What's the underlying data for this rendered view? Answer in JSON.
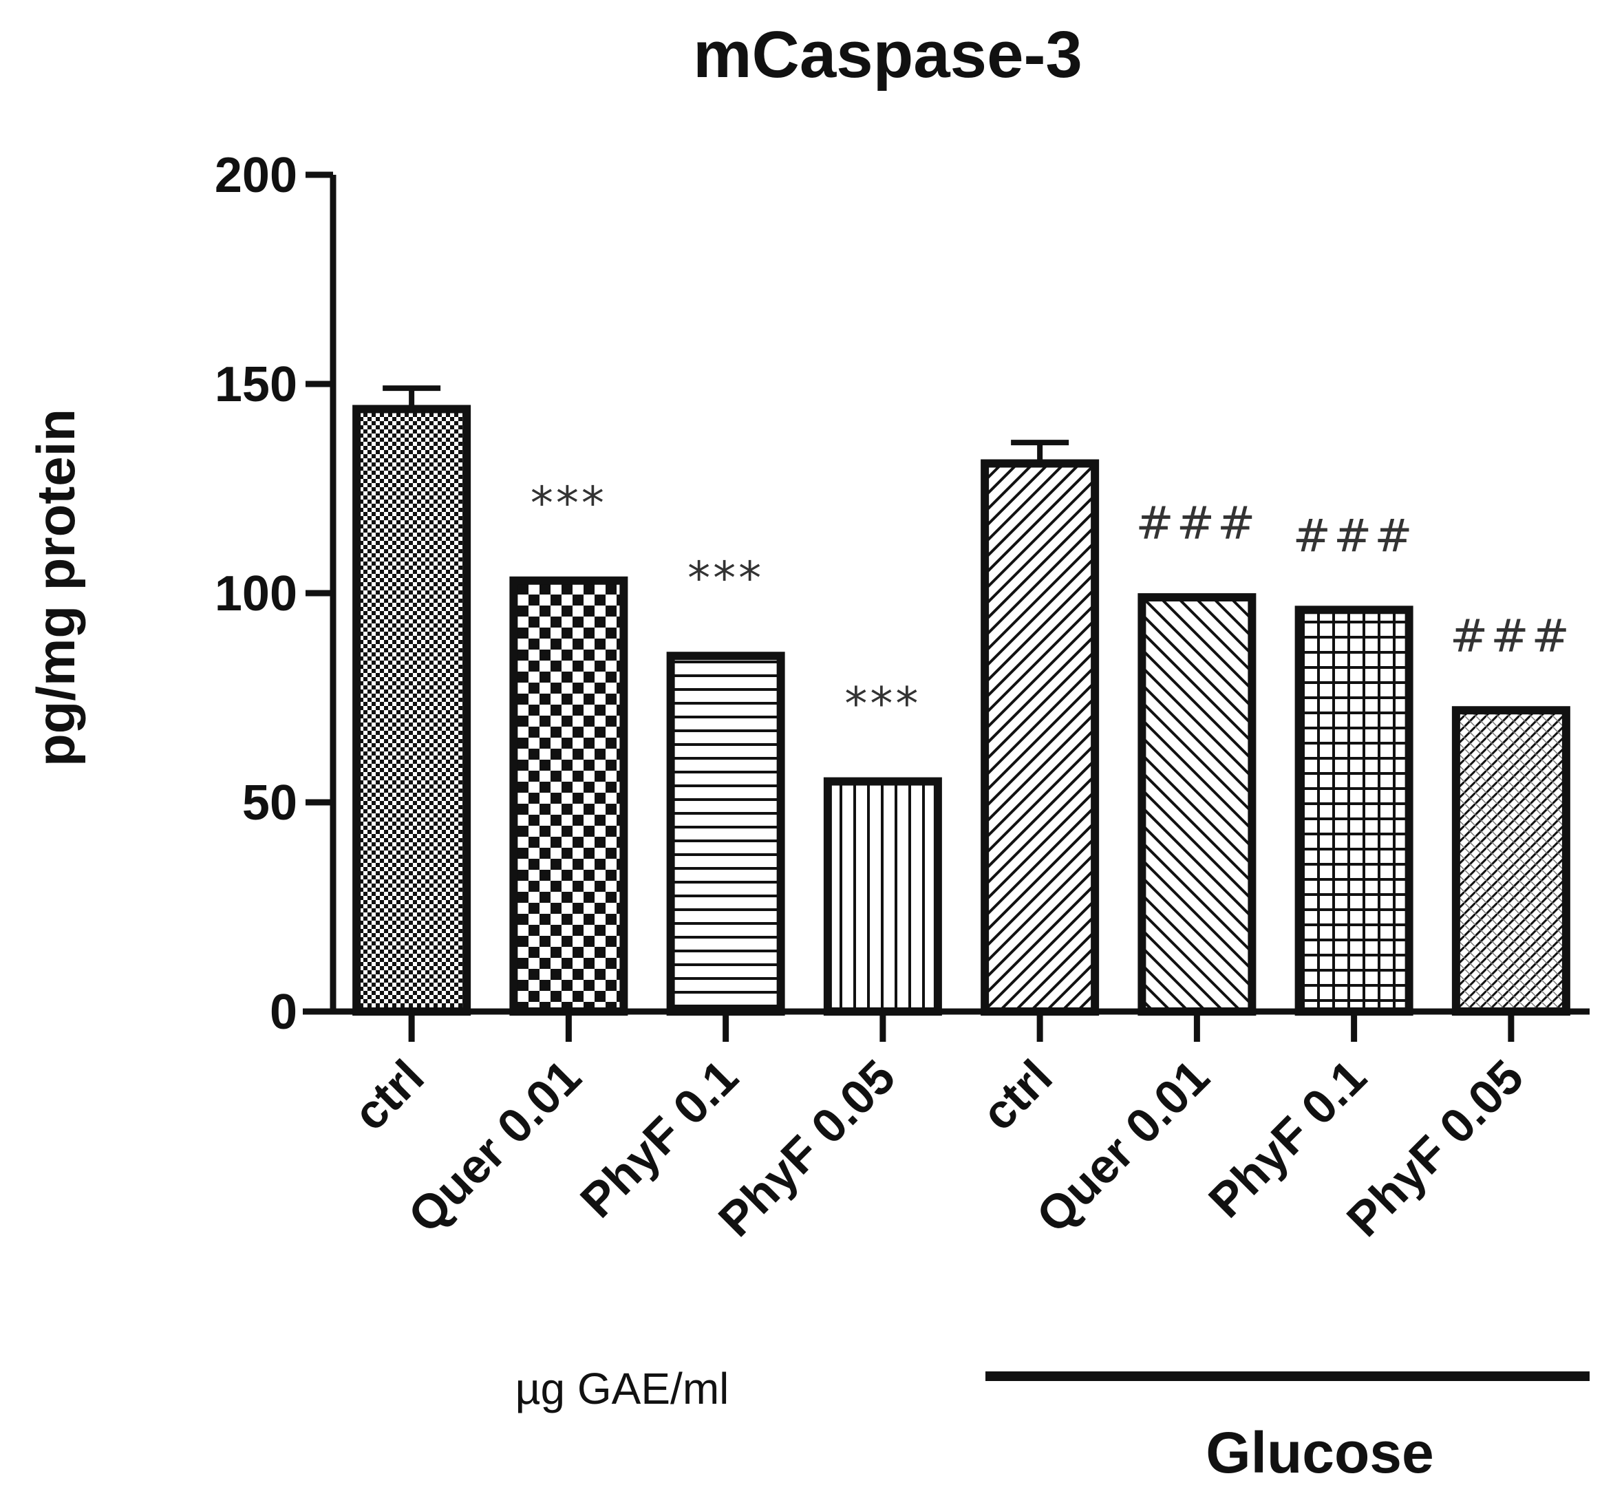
{
  "chart_data": {
    "type": "bar",
    "title": "mCaspase-3",
    "ylabel": "pg/mg protein",
    "xlabel": "",
    "ylim": [
      0,
      200
    ],
    "yticks": [
      0,
      50,
      100,
      150,
      200
    ],
    "categories": [
      "ctrl",
      "Quer 0.01",
      "PhyF 0.1",
      "PhyF 0.05",
      "ctrl",
      "Quer 0.01",
      "PhyF 0.1",
      "PhyF 0.05"
    ],
    "values": [
      144,
      103,
      85,
      55,
      131,
      99,
      96,
      72
    ],
    "errors": [
      5,
      0,
      0,
      0,
      5,
      0,
      0,
      0
    ],
    "annotations": [
      "",
      "***",
      "***",
      "***",
      "",
      "###",
      "###",
      "###"
    ],
    "patterns": [
      "fine-checker",
      "checker",
      "horizontal",
      "vertical",
      "diagonal-up",
      "diagonal-down",
      "grid",
      "crosshatch-diagonal"
    ],
    "unit_label": "µg GAE/ml",
    "group_label": "Glucose",
    "grid": false,
    "legend": "none"
  }
}
